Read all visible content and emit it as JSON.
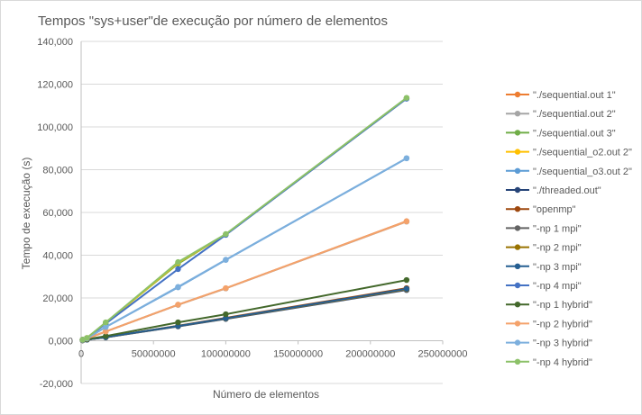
{
  "chart_data": {
    "type": "scatter",
    "title": "Tempos \"sys+user\"de execução por número de elementos",
    "xlabel": "Número de elementos",
    "ylabel": "Tempo de execução (s)",
    "xlim": [
      0,
      250000000
    ],
    "ylim": [
      -20000,
      140000
    ],
    "x_ticks": [
      0,
      50000000,
      100000000,
      150000000,
      200000000,
      250000000
    ],
    "x_tick_labels": [
      "0",
      "50000000",
      "100000000",
      "150000000",
      "200000000",
      "250000000"
    ],
    "y_ticks": [
      -20000,
      0,
      20000,
      40000,
      60000,
      80000,
      100000,
      120000,
      140000
    ],
    "y_tick_labels": [
      "-20,000",
      "0,000",
      "20,000",
      "40,000",
      "60,000",
      "80,000",
      "100,000",
      "120,000",
      "140,000"
    ],
    "grid": "horizontal",
    "legend_position": "right",
    "x": [
      1000000,
      4000000,
      17000000,
      67000000,
      100000000,
      225000000
    ],
    "series": [
      {
        "name": "\"./sequential.out 1\"",
        "color": "#ed7d31",
        "values": [
          400,
          1000,
          4300,
          16800,
          24500,
          55900
        ]
      },
      {
        "name": "\"./sequential.out 2\"",
        "color": "#a5a5a5",
        "values": [
          400,
          1000,
          4300,
          16800,
          24500,
          55700
        ]
      },
      {
        "name": "\"./sequential.out 3\"",
        "color": "#70ad47",
        "values": [
          500,
          1300,
          8500,
          36000,
          49800,
          113500
        ]
      },
      {
        "name": "\"./sequential_o2.out 2\"",
        "color": "#ffc000",
        "values": [
          500,
          1300,
          8300,
          36500,
          49700,
          113400
        ]
      },
      {
        "name": "\"./sequential_o3.out 2\"",
        "color": "#5b9bd5",
        "values": [
          400,
          1100,
          6400,
          25000,
          37800,
          85300
        ]
      },
      {
        "name": "\"./threaded.out\"",
        "color": "#264478",
        "values": [
          200,
          500,
          1600,
          6700,
          10200,
          23700
        ]
      },
      {
        "name": "\"openmp\"",
        "color": "#9e480e",
        "values": [
          200,
          500,
          1700,
          7000,
          10700,
          24600
        ]
      },
      {
        "name": "\"-np 1 mpi\"",
        "color": "#636363",
        "values": [
          200,
          500,
          1600,
          6800,
          10300,
          23900
        ]
      },
      {
        "name": "\"-np 2 mpi\"",
        "color": "#997300",
        "values": [
          200,
          500,
          1700,
          6900,
          10400,
          24100
        ]
      },
      {
        "name": "\"-np 3 mpi\"",
        "color": "#255e91",
        "values": [
          200,
          500,
          1700,
          6900,
          10500,
          24300
        ]
      },
      {
        "name": "\"-np 4 mpi\"",
        "color": "#4472c4",
        "values": [
          500,
          1200,
          8000,
          33500,
          49500,
          113200
        ]
      },
      {
        "name": "\"-np 1 hybrid\"",
        "color": "#43682b",
        "values": [
          300,
          700,
          2200,
          8600,
          12400,
          28400
        ]
      },
      {
        "name": "\"-np 2 hybrid\"",
        "color": "#f4a26b",
        "values": [
          400,
          1000,
          4300,
          16900,
          24600,
          55800
        ]
      },
      {
        "name": "\"-np 3 hybrid\"",
        "color": "#7cafdd",
        "values": [
          400,
          1100,
          6400,
          25200,
          37900,
          85400
        ]
      },
      {
        "name": "\"-np 4 hybrid\"",
        "color": "#8cc168",
        "values": [
          500,
          1300,
          8600,
          36800,
          49900,
          113600
        ]
      }
    ]
  }
}
